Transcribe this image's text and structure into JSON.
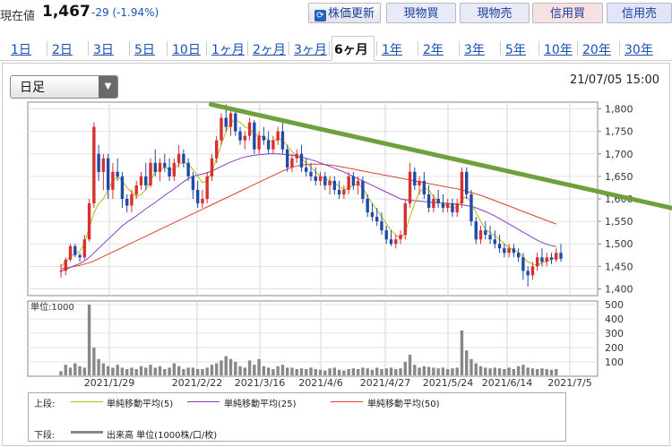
{
  "header": {
    "price_label": "現在値",
    "price_value": "1,467",
    "price_change": "-29 (-1.94%)",
    "buttons": {
      "refresh": "株価更新",
      "genbutsu_buy": "現物買",
      "genbutsu_sell": "現物売",
      "shinyo_buy": "信用買",
      "shinyo_sell": "信用売"
    }
  },
  "tabs": [
    "1日",
    "2日",
    "3日",
    "5日",
    "10日",
    "1ヶ月",
    "2ヶ月",
    "3ヶ月",
    "6ヶ月",
    "1年",
    "2年",
    "3年",
    "5年",
    "10年",
    "20年",
    "30年"
  ],
  "selected_tab": "6ヶ月",
  "period_select": {
    "value": "日足"
  },
  "chart_datetime": "21/07/05 15:00",
  "legend": {
    "upper_label": "上段:",
    "lower_label": "下段:",
    "ma5": "単純移動平均(5)",
    "ma25": "単純移動平均(25)",
    "ma50": "単純移動平均(50)",
    "volume": "出来高 単位(1000株/口/枚)"
  },
  "colors": {
    "up": "#d8302f",
    "down": "#1f4aa8",
    "ma5": "#b4b919",
    "ma25": "#8a3ac9",
    "ma50": "#d9462d",
    "trendline": "#6ea03c",
    "volume": "#888888"
  },
  "chart_data": [
    {
      "type": "candlestick",
      "price_axis": {
        "ylim": [
          1385,
          1815
        ],
        "ticks": [
          "1,800",
          "1,750",
          "1,700",
          "1,650",
          "1,600",
          "1,550",
          "1,500",
          "1,450",
          "1,400"
        ]
      },
      "x_ticks": [
        "2021/1/29",
        "2021/2/22",
        "2021/3/16",
        "2021/4/6",
        "2021/4/27",
        "2021/5/24",
        "2021/6/14",
        "2021/7/5"
      ],
      "candles": [
        [
          1440,
          1455,
          1425,
          1440
        ],
        [
          1440,
          1470,
          1430,
          1465
        ],
        [
          1465,
          1500,
          1460,
          1495
        ],
        [
          1495,
          1500,
          1470,
          1475
        ],
        [
          1475,
          1480,
          1460,
          1470
        ],
        [
          1470,
          1520,
          1465,
          1510
        ],
        [
          1510,
          1600,
          1505,
          1590
        ],
        [
          1590,
          1770,
          1580,
          1760
        ],
        [
          1700,
          1720,
          1640,
          1660
        ],
        [
          1660,
          1700,
          1620,
          1690
        ],
        [
          1690,
          1700,
          1600,
          1620
        ],
        [
          1620,
          1680,
          1600,
          1660
        ],
        [
          1660,
          1690,
          1640,
          1650
        ],
        [
          1650,
          1660,
          1580,
          1600
        ],
        [
          1600,
          1610,
          1570,
          1585
        ],
        [
          1585,
          1620,
          1570,
          1610
        ],
        [
          1610,
          1640,
          1600,
          1630
        ],
        [
          1630,
          1660,
          1620,
          1650
        ],
        [
          1650,
          1680,
          1620,
          1630
        ],
        [
          1630,
          1690,
          1625,
          1680
        ],
        [
          1680,
          1710,
          1650,
          1660
        ],
        [
          1660,
          1690,
          1640,
          1680
        ],
        [
          1680,
          1700,
          1660,
          1670
        ],
        [
          1670,
          1690,
          1640,
          1650
        ],
        [
          1650,
          1690,
          1640,
          1680
        ],
        [
          1680,
          1720,
          1670,
          1700
        ],
        [
          1700,
          1710,
          1670,
          1680
        ],
        [
          1680,
          1690,
          1640,
          1650
        ],
        [
          1650,
          1660,
          1600,
          1620
        ],
        [
          1620,
          1640,
          1580,
          1590
        ],
        [
          1590,
          1620,
          1580,
          1600
        ],
        [
          1600,
          1660,
          1590,
          1650
        ],
        [
          1650,
          1700,
          1640,
          1690
        ],
        [
          1690,
          1740,
          1680,
          1730
        ],
        [
          1730,
          1790,
          1720,
          1780
        ],
        [
          1780,
          1810,
          1750,
          1760
        ],
        [
          1760,
          1800,
          1740,
          1790
        ],
        [
          1790,
          1800,
          1740,
          1750
        ],
        [
          1750,
          1760,
          1720,
          1730
        ],
        [
          1730,
          1750,
          1710,
          1740
        ],
        [
          1740,
          1780,
          1730,
          1770
        ],
        [
          1770,
          1775,
          1700,
          1710
        ],
        [
          1710,
          1750,
          1700,
          1740
        ],
        [
          1740,
          1760,
          1720,
          1730
        ],
        [
          1730,
          1750,
          1700,
          1710
        ],
        [
          1710,
          1740,
          1700,
          1730
        ],
        [
          1730,
          1760,
          1720,
          1750
        ],
        [
          1750,
          1770,
          1700,
          1710
        ],
        [
          1710,
          1720,
          1660,
          1670
        ],
        [
          1670,
          1700,
          1660,
          1690
        ],
        [
          1690,
          1710,
          1680,
          1700
        ],
        [
          1700,
          1720,
          1660,
          1670
        ],
        [
          1670,
          1690,
          1650,
          1660
        ],
        [
          1660,
          1680,
          1640,
          1650
        ],
        [
          1650,
          1670,
          1630,
          1640
        ],
        [
          1640,
          1660,
          1630,
          1650
        ],
        [
          1650,
          1660,
          1620,
          1630
        ],
        [
          1630,
          1650,
          1610,
          1640
        ],
        [
          1640,
          1650,
          1610,
          1620
        ],
        [
          1620,
          1640,
          1600,
          1610
        ],
        [
          1610,
          1630,
          1600,
          1620
        ],
        [
          1620,
          1660,
          1610,
          1650
        ],
        [
          1650,
          1660,
          1620,
          1630
        ],
        [
          1630,
          1650,
          1610,
          1640
        ],
        [
          1640,
          1650,
          1590,
          1600
        ],
        [
          1600,
          1610,
          1560,
          1570
        ],
        [
          1570,
          1590,
          1550,
          1560
        ],
        [
          1560,
          1580,
          1540,
          1550
        ],
        [
          1550,
          1570,
          1520,
          1530
        ],
        [
          1530,
          1540,
          1500,
          1510
        ],
        [
          1510,
          1530,
          1495,
          1500
        ],
        [
          1500,
          1520,
          1490,
          1510
        ],
        [
          1510,
          1530,
          1500,
          1520
        ],
        [
          1520,
          1600,
          1510,
          1590
        ],
        [
          1590,
          1680,
          1580,
          1660
        ],
        [
          1660,
          1670,
          1620,
          1630
        ],
        [
          1630,
          1650,
          1610,
          1640
        ],
        [
          1640,
          1660,
          1600,
          1610
        ],
        [
          1610,
          1630,
          1570,
          1580
        ],
        [
          1580,
          1610,
          1570,
          1600
        ],
        [
          1600,
          1620,
          1580,
          1590
        ],
        [
          1590,
          1610,
          1570,
          1580
        ],
        [
          1580,
          1600,
          1570,
          1590
        ],
        [
          1590,
          1600,
          1560,
          1570
        ],
        [
          1570,
          1600,
          1560,
          1590
        ],
        [
          1590,
          1670,
          1580,
          1660
        ],
        [
          1660,
          1670,
          1600,
          1610
        ],
        [
          1610,
          1620,
          1540,
          1550
        ],
        [
          1550,
          1560,
          1500,
          1510
        ],
        [
          1510,
          1540,
          1500,
          1530
        ],
        [
          1530,
          1550,
          1510,
          1520
        ],
        [
          1520,
          1540,
          1500,
          1510
        ],
        [
          1510,
          1530,
          1490,
          1500
        ],
        [
          1500,
          1520,
          1480,
          1490
        ],
        [
          1490,
          1500,
          1470,
          1480
        ],
        [
          1480,
          1500,
          1470,
          1490
        ],
        [
          1490,
          1500,
          1470,
          1480
        ],
        [
          1480,
          1490,
          1460,
          1470
        ],
        [
          1470,
          1480,
          1420,
          1440
        ],
        [
          1440,
          1450,
          1405,
          1430
        ],
        [
          1430,
          1460,
          1420,
          1450
        ],
        [
          1450,
          1480,
          1440,
          1470
        ],
        [
          1470,
          1490,
          1450,
          1460
        ],
        [
          1460,
          1480,
          1450,
          1470
        ],
        [
          1470,
          1480,
          1455,
          1465
        ],
        [
          1465,
          1490,
          1460,
          1480
        ],
        [
          1480,
          1500,
          1460,
          1467
        ]
      ],
      "ma5": [
        1450,
        1460,
        1472,
        1478,
        1484,
        1500,
        1535,
        1568,
        1590,
        1600,
        1620,
        1640,
        1650,
        1640,
        1625,
        1615,
        1605,
        1610,
        1620,
        1640,
        1660,
        1665,
        1670,
        1665,
        1665,
        1678,
        1680,
        1678,
        1665,
        1650,
        1636,
        1640,
        1660,
        1690,
        1720,
        1750,
        1770,
        1775,
        1770,
        1760,
        1755,
        1745,
        1740,
        1738,
        1730,
        1728,
        1735,
        1730,
        1718,
        1705,
        1695,
        1690,
        1680,
        1670,
        1660,
        1650,
        1645,
        1640,
        1635,
        1628,
        1620,
        1625,
        1630,
        1632,
        1625,
        1605,
        1590,
        1575,
        1560,
        1545,
        1530,
        1520,
        1512,
        1525,
        1560,
        1590,
        1615,
        1625,
        1620,
        1605,
        1595,
        1588,
        1584,
        1580,
        1580,
        1600,
        1605,
        1590,
        1570,
        1550,
        1532,
        1525,
        1518,
        1510,
        1500,
        1492,
        1486,
        1482,
        1470,
        1460,
        1455,
        1452,
        1458,
        1462,
        1466,
        1470
      ],
      "ma25": [
        1440,
        1443,
        1448,
        1452,
        1456,
        1462,
        1470,
        1480,
        1490,
        1500,
        1510,
        1520,
        1530,
        1540,
        1548,
        1555,
        1562,
        1570,
        1578,
        1585,
        1592,
        1600,
        1608,
        1615,
        1622,
        1630,
        1638,
        1645,
        1650,
        1653,
        1655,
        1658,
        1662,
        1667,
        1672,
        1677,
        1682,
        1686,
        1690,
        1693,
        1695,
        1697,
        1698,
        1699,
        1700,
        1700,
        1700,
        1699,
        1698,
        1697,
        1695,
        1693,
        1690,
        1687,
        1684,
        1680,
        1676,
        1672,
        1668,
        1664,
        1660,
        1655,
        1650,
        1645,
        1640,
        1635,
        1630,
        1625,
        1620,
        1615,
        1610,
        1605,
        1600,
        1598,
        1597,
        1596,
        1595,
        1594,
        1593,
        1592,
        1592,
        1591,
        1590,
        1589,
        1588,
        1587,
        1585,
        1583,
        1580,
        1576,
        1572,
        1567,
        1562,
        1556,
        1550,
        1544,
        1538,
        1532,
        1526,
        1520,
        1514,
        1508,
        1503,
        1499,
        1496,
        1494
      ],
      "ma50": [
        1445,
        1446,
        1448,
        1450,
        1452,
        1455,
        1458,
        1462,
        1467,
        1472,
        1477,
        1482,
        1487,
        1492,
        1497,
        1502,
        1507,
        1512,
        1517,
        1522,
        1527,
        1532,
        1537,
        1542,
        1547,
        1552,
        1557,
        1562,
        1567,
        1572,
        1577,
        1582,
        1587,
        1592,
        1597,
        1602,
        1607,
        1612,
        1617,
        1622,
        1627,
        1632,
        1637,
        1642,
        1647,
        1652,
        1657,
        1662,
        1666,
        1670,
        1673,
        1675,
        1676,
        1677,
        1677,
        1677,
        1676,
        1675,
        1674,
        1672,
        1670,
        1668,
        1666,
        1664,
        1662,
        1660,
        1658,
        1656,
        1654,
        1652,
        1650,
        1648,
        1646,
        1644,
        1642,
        1640,
        1638,
        1636,
        1634,
        1632,
        1630,
        1628,
        1626,
        1624,
        1622,
        1620,
        1617,
        1614,
        1611,
        1608,
        1604,
        1600,
        1596,
        1592,
        1588,
        1584,
        1580,
        1576,
        1572,
        1568,
        1564,
        1560,
        1556,
        1552,
        1548,
        1544
      ],
      "trendline": [
        [
          0.3,
          1810
        ],
        [
          1.28,
          1565
        ]
      ]
    },
    {
      "type": "bar",
      "name": "volume",
      "unit_label": "単位:1000",
      "ylim": [
        0,
        500
      ],
      "ticks": [
        "500",
        "400",
        "300",
        "200",
        "100"
      ],
      "values": [
        35,
        80,
        60,
        90,
        70,
        60,
        500,
        200,
        120,
        90,
        70,
        60,
        80,
        60,
        50,
        60,
        50,
        70,
        60,
        80,
        60,
        70,
        50,
        60,
        90,
        70,
        50,
        60,
        60,
        50,
        50,
        60,
        80,
        90,
        110,
        140,
        120,
        100,
        70,
        60,
        110,
        80,
        120,
        70,
        60,
        50,
        70,
        80,
        60,
        60,
        50,
        55,
        50,
        60,
        50,
        45,
        40,
        55,
        60,
        45,
        40,
        50,
        55,
        50,
        60,
        55,
        45,
        60,
        50,
        55,
        60,
        50,
        55,
        100,
        150,
        80,
        60,
        70,
        65,
        60,
        55,
        60,
        50,
        55,
        60,
        320,
        180,
        120,
        90,
        70,
        60,
        55,
        60,
        55,
        50,
        60,
        50,
        70,
        80,
        60,
        55,
        50,
        55,
        50,
        45,
        50
      ]
    }
  ]
}
